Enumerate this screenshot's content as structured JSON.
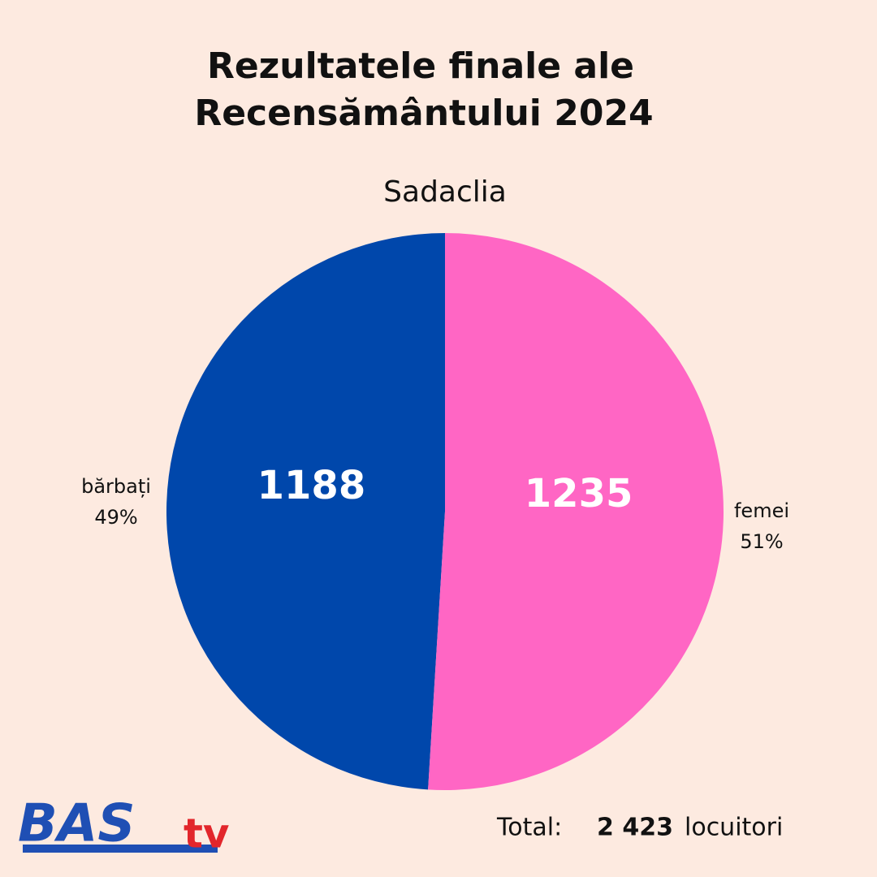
{
  "chart_data": {
    "type": "pie",
    "title": [
      "Rezultatele finale ale",
      "Recensământului 2024"
    ],
    "subtitle": "Sadaclia",
    "categories": [
      "bărbați",
      "femei"
    ],
    "values": [
      1188,
      1235
    ],
    "colors": [
      "#0047ab",
      "#ff66c4"
    ],
    "percentages": [
      {
        "value": 49,
        "label": "49%"
      },
      {
        "value": 51,
        "label": "51%"
      }
    ],
    "total_prefix": "Total:",
    "total": {
      "value": 2423,
      "label": "2 423"
    },
    "total_unit": "locuitori",
    "logo": {
      "main": "BAS",
      "suffix": "tv"
    }
  }
}
